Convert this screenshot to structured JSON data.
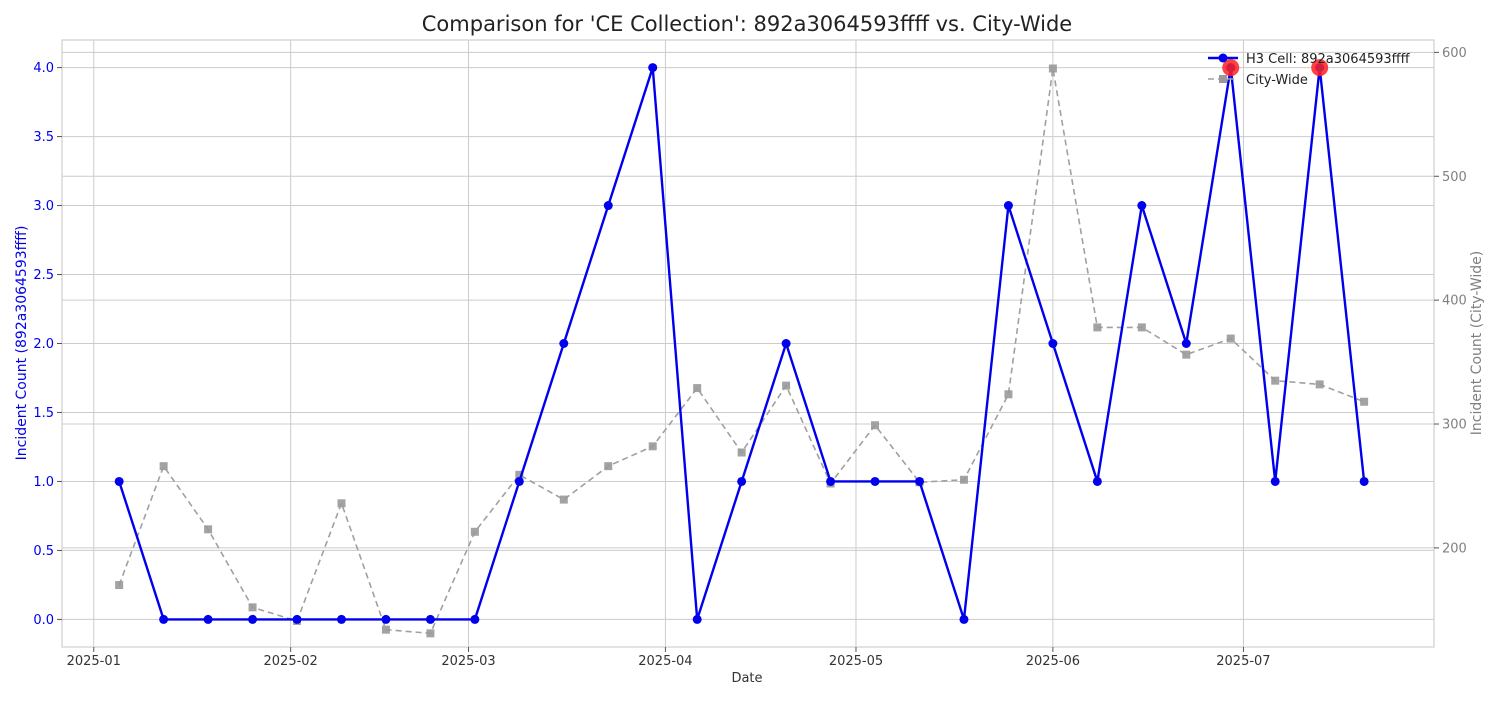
{
  "chart_data": {
    "type": "line",
    "title": "Comparison for 'CE Collection': 892a3064593ffff vs. City-Wide",
    "xlabel": "Date",
    "ylabel_left": "Incident Count (892a3064593ffff)",
    "ylabel_right": "Incident Count (City-Wide)",
    "x_ticks": [
      "2025-01",
      "2025-02",
      "2025-03",
      "2025-04",
      "2025-05",
      "2025-06",
      "2025-07"
    ],
    "x_range": [
      "2024-12-27",
      "2025-07-31"
    ],
    "ylim_left": [
      -0.2,
      4.2
    ],
    "ylim_right": [
      120,
      610
    ],
    "yticks_left": [
      "0.0",
      "0.5",
      "1.0",
      "1.5",
      "2.0",
      "2.5",
      "3.0",
      "3.5",
      "4.0"
    ],
    "yticks_right": [
      "200",
      "300",
      "400",
      "500",
      "600"
    ],
    "grid": true,
    "legend_position": "top-right",
    "x": [
      "2025-01-05",
      "2025-01-12",
      "2025-01-19",
      "2025-01-26",
      "2025-02-02",
      "2025-02-09",
      "2025-02-16",
      "2025-02-23",
      "2025-03-02",
      "2025-03-09",
      "2025-03-16",
      "2025-03-23",
      "2025-03-30",
      "2025-04-06",
      "2025-04-13",
      "2025-04-20",
      "2025-04-27",
      "2025-05-04",
      "2025-05-11",
      "2025-05-18",
      "2025-05-25",
      "2025-06-01",
      "2025-06-08",
      "2025-06-15",
      "2025-06-22",
      "2025-06-29",
      "2025-07-06",
      "2025-07-13",
      "2025-07-20"
    ],
    "series": [
      {
        "name": "H3 Cell: 892a3064593ffff",
        "axis": "left",
        "color": "#0000ee",
        "values": [
          1,
          0,
          0,
          0,
          0,
          0,
          0,
          0,
          0,
          1,
          2,
          3,
          4,
          0,
          1,
          2,
          1,
          1,
          1,
          0,
          3,
          2,
          1,
          3,
          2,
          4,
          1,
          4,
          1
        ]
      },
      {
        "name": "City-Wide",
        "axis": "right",
        "color": "#999999",
        "values": [
          170,
          266,
          215,
          152,
          141,
          236,
          134,
          131,
          213,
          259,
          239,
          266,
          282,
          329,
          277,
          331,
          252,
          299,
          253,
          255,
          324,
          587,
          378,
          378,
          356,
          369,
          335,
          332,
          318
        ]
      }
    ],
    "highlight_points": [
      {
        "x": "2025-06-29",
        "value": 4
      },
      {
        "x": "2025-07-13",
        "value": 4
      }
    ],
    "colors": {
      "left_axis": "#0000ee",
      "right_axis": "#808080",
      "highlight": "#ff2020",
      "grid": "#cccccc",
      "frame": "#cfcfcf"
    }
  }
}
